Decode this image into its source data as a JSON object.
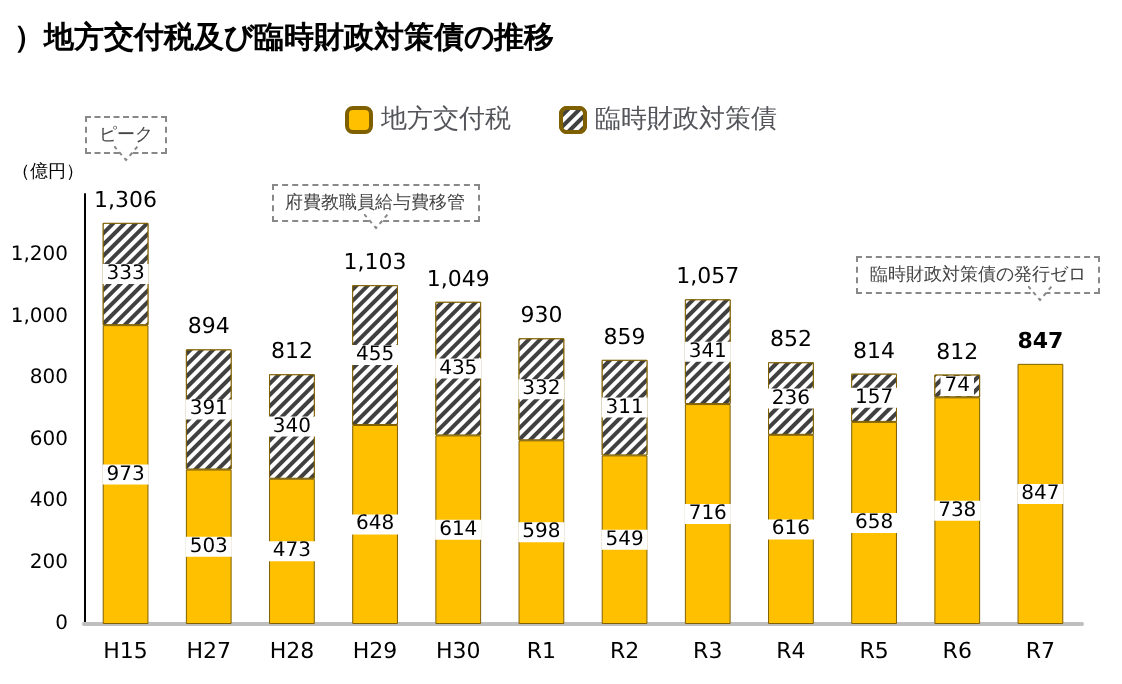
{
  "chart_data": {
    "type": "bar",
    "title": "）地方交付税及び臨時財政対策債の推移",
    "ylabel": "（億円）",
    "categories": [
      "H15",
      "H27",
      "H28",
      "H29",
      "H30",
      "R1",
      "R2",
      "R3",
      "R4",
      "R5",
      "R6",
      "R7"
    ],
    "stacked": true,
    "series": [
      {
        "name": "地方交付税",
        "color": "#ffc000",
        "values": [
          973,
          503,
          473,
          648,
          614,
          598,
          549,
          716,
          616,
          658,
          738,
          847
        ]
      },
      {
        "name": "臨時財政対策債",
        "color": "#404040",
        "values": [
          333,
          391,
          340,
          455,
          435,
          332,
          311,
          341,
          236,
          157,
          74,
          null
        ]
      }
    ],
    "totals": [
      "1,306",
      "894",
      "812",
      "1,103",
      "1,049",
      "930",
      "859",
      "1,057",
      "852",
      "814",
      "812",
      "847"
    ],
    "annotations": [
      "ピーク",
      "府費教職員給与費移管",
      "臨時財政対策債の発行ゼロ"
    ],
    "data_labels": true,
    "legend": "top",
    "grid": false,
    "ylim": [
      0,
      1400
    ],
    "yticks": [
      {
        "value": 0,
        "label": "0"
      },
      {
        "value": 200,
        "label": "200"
      },
      {
        "value": 400,
        "label": "400"
      },
      {
        "value": 600,
        "label": "600"
      },
      {
        "value": 800,
        "label": "800"
      },
      {
        "value": 1000,
        "label": "1,000"
      },
      {
        "value": 1200,
        "label": "1,200"
      }
    ]
  }
}
